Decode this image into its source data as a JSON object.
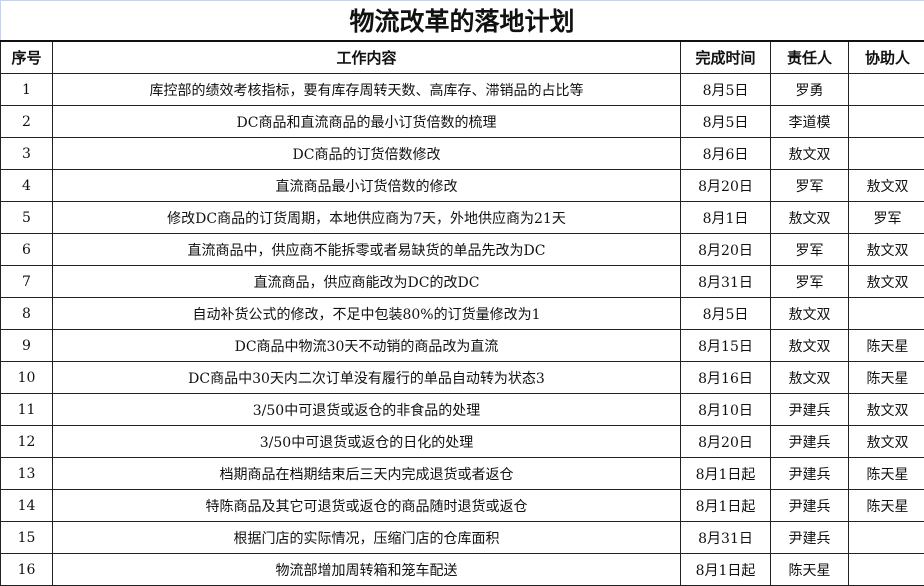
{
  "title": "物流改革的落地计划",
  "headers": [
    "序号",
    "工作内容",
    "完成时间",
    "责任人",
    "协助人"
  ],
  "rows": [
    [
      "1",
      "库控部的绩效考核指标，要有库存周转天数、高库存、滞销品的占比等",
      "8月5日",
      "罗勇",
      ""
    ],
    [
      "2",
      "DC商品和直流商品的最小订货倍数的梳理",
      "8月5日",
      "李道模",
      ""
    ],
    [
      "3",
      "DC商品的订货倍数修改",
      "8月6日",
      "敖文双",
      ""
    ],
    [
      "4",
      "直流商品最小订货倍数的修改",
      "8月20日",
      "罗军",
      "敖文双"
    ],
    [
      "5",
      "修改DC商品的订货周期，本地供应商为7天，外地供应商为21天",
      "8月1日",
      "敖文双",
      "罗军"
    ],
    [
      "6",
      "直流商品中，供应商不能拆零或者易缺货的单品先改为DC",
      "8月20日",
      "罗军",
      "敖文双"
    ],
    [
      "7",
      "直流商品，供应商能改为DC的改DC",
      "8月31日",
      "罗军",
      "敖文双"
    ],
    [
      "8",
      "自动补货公式的修改，不足中包装80%的订货量修改为1",
      "8月5日",
      "敖文双",
      ""
    ],
    [
      "9",
      "DC商品中物流30天不动销的商品改为直流",
      "8月15日",
      "敖文双",
      "陈天星"
    ],
    [
      "10",
      "DC商品中30天内二次订单没有履行的单品自动转为状态3",
      "8月16日",
      "敖文双",
      "陈天星"
    ],
    [
      "11",
      "3/50中可退货或返仓的非食品的处理",
      "8月10日",
      "尹建兵",
      "敖文双"
    ],
    [
      "12",
      "3/50中可退货或返仓的日化的处理",
      "8月20日",
      "尹建兵",
      "敖文双"
    ],
    [
      "13",
      "档期商品在档期结束后三天内完成退货或者返仓",
      "8月1日起",
      "尹建兵",
      "陈天星"
    ],
    [
      "14",
      "特陈商品及其它可退货或返仓的商品随时退货或返仓",
      "8月1日起",
      "尹建兵",
      "陈天星"
    ],
    [
      "15",
      "根据门店的实际情况，压缩门店的仓库面积",
      "8月31日",
      "尹建兵",
      ""
    ],
    [
      "16",
      "物流部增加周转箱和笼车配送",
      "8月1日起",
      "陈天星",
      ""
    ]
  ]
}
